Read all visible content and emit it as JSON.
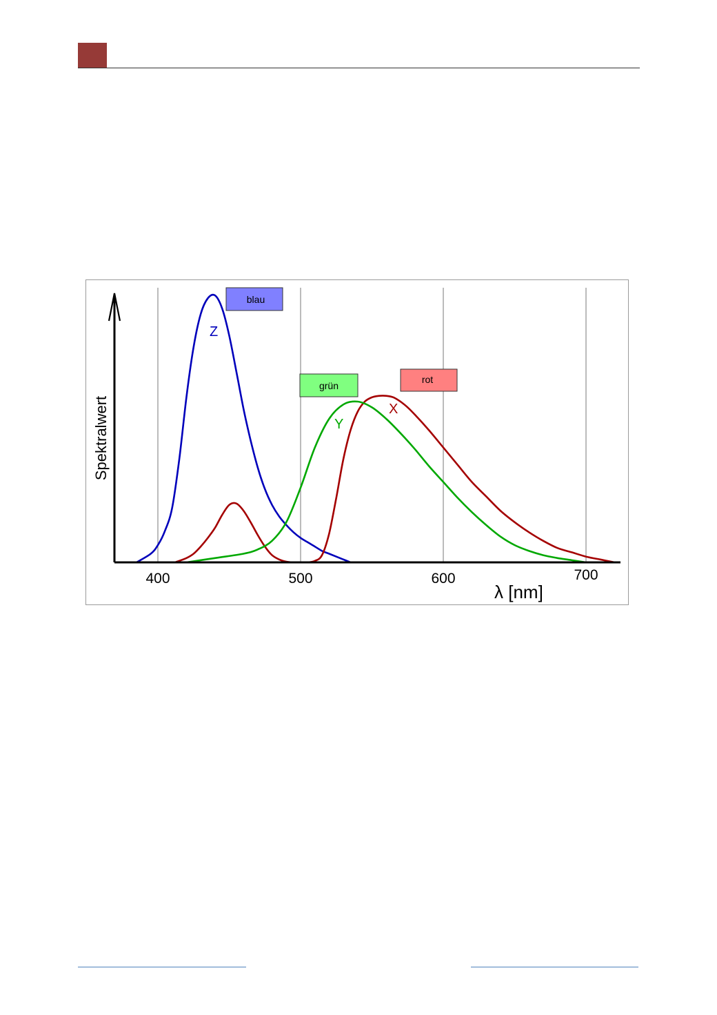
{
  "chart_data": {
    "type": "line",
    "title": "",
    "xlabel": "λ [nm]",
    "ylabel": "Spektralwert",
    "xlim": [
      370,
      725
    ],
    "ylim": [
      0,
      1.85
    ],
    "xticks": [
      400,
      500,
      600,
      700
    ],
    "grid_x": true,
    "grid_y": false,
    "series": [
      {
        "label": "Z",
        "legend": "blau",
        "color": "#0000bb",
        "x": [
          385,
          395,
          400,
          405,
          410,
          415,
          420,
          425,
          430,
          435,
          440,
          445,
          450,
          455,
          460,
          465,
          470,
          475,
          480,
          485,
          490,
          495,
          500,
          505,
          510,
          515,
          520,
          525,
          530,
          535
        ],
        "y": [
          0.0,
          0.06,
          0.12,
          0.22,
          0.38,
          0.72,
          1.15,
          1.5,
          1.73,
          1.84,
          1.86,
          1.77,
          1.58,
          1.33,
          1.07,
          0.85,
          0.66,
          0.51,
          0.4,
          0.32,
          0.26,
          0.21,
          0.17,
          0.14,
          0.11,
          0.08,
          0.06,
          0.04,
          0.02,
          0.0
        ]
      },
      {
        "label": "Y",
        "legend": "grün",
        "color": "#00a800",
        "x": [
          420,
          440,
          460,
          470,
          480,
          490,
          500,
          510,
          520,
          530,
          540,
          550,
          560,
          570,
          580,
          590,
          600,
          610,
          620,
          630,
          640,
          650,
          660,
          670,
          680,
          690,
          700
        ],
        "y": [
          0.0,
          0.03,
          0.06,
          0.09,
          0.15,
          0.28,
          0.52,
          0.8,
          1.0,
          1.1,
          1.12,
          1.08,
          1.0,
          0.9,
          0.79,
          0.67,
          0.56,
          0.45,
          0.35,
          0.26,
          0.18,
          0.12,
          0.08,
          0.05,
          0.03,
          0.015,
          0.0
        ]
      },
      {
        "label": "X",
        "legend": "rot",
        "color": "#a40000",
        "x": [
          412,
          420,
          425,
          430,
          435,
          440,
          445,
          450,
          455,
          460,
          465,
          470,
          475,
          480,
          485,
          490,
          495,
          500,
          505,
          510,
          515,
          520,
          525,
          530,
          535,
          540,
          545,
          550,
          555,
          560,
          565,
          570,
          575,
          580,
          590,
          600,
          610,
          620,
          630,
          640,
          650,
          660,
          670,
          680,
          690,
          700,
          710,
          720
        ],
        "y": [
          0.0,
          0.03,
          0.06,
          0.11,
          0.17,
          0.24,
          0.33,
          0.4,
          0.41,
          0.36,
          0.28,
          0.19,
          0.11,
          0.05,
          0.02,
          0.005,
          0.0,
          0.0,
          0.0,
          0.01,
          0.05,
          0.2,
          0.45,
          0.72,
          0.92,
          1.05,
          1.12,
          1.15,
          1.16,
          1.16,
          1.15,
          1.12,
          1.08,
          1.03,
          0.92,
          0.8,
          0.68,
          0.56,
          0.46,
          0.36,
          0.28,
          0.21,
          0.15,
          0.1,
          0.07,
          0.04,
          0.02,
          0.0
        ]
      }
    ]
  },
  "legend": {
    "blau": "blau",
    "gruen": "grün",
    "rot": "rot"
  },
  "colors": {
    "header_block": "#963a37",
    "legend_blau_fill": "#8080ff",
    "legend_gruen_fill": "#80ff80",
    "legend_rot_fill": "#ff8080",
    "footer_rule": "#4f81bd"
  }
}
